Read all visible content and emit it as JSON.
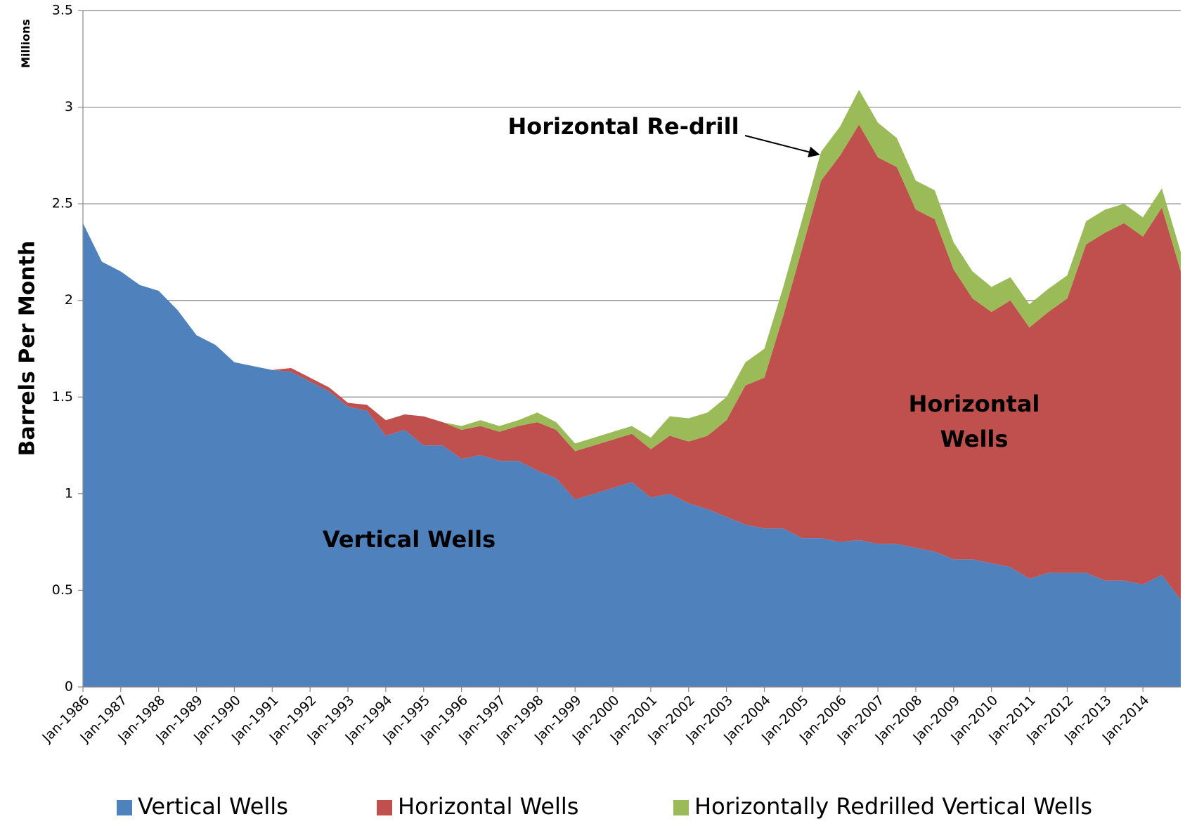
{
  "chart_data": {
    "type": "stacked_area",
    "y_unit_label": "Millions",
    "ylabel": "Barrels Per Month",
    "ylim": [
      0,
      3.5
    ],
    "yticks": [
      0,
      0.5,
      1,
      1.5,
      2,
      2.5,
      3,
      3.5
    ],
    "grid": true,
    "legend": "bottom",
    "annotations": [
      {
        "text": "Vertical Wells"
      },
      {
        "text": "Horizontal"
      },
      {
        "text": "Wells"
      },
      {
        "text": "Horizontal Re-drill"
      }
    ],
    "x": [
      "Jan-1986",
      "Jul-1986",
      "Jan-1987",
      "Jul-1987",
      "Jan-1988",
      "Jul-1988",
      "Jan-1989",
      "Jul-1989",
      "Jan-1990",
      "Jul-1990",
      "Jan-1991",
      "Jul-1991",
      "Jan-1992",
      "Jul-1992",
      "Jan-1993",
      "Jul-1993",
      "Jan-1994",
      "Jul-1994",
      "Jan-1995",
      "Jul-1995",
      "Jan-1996",
      "Jul-1996",
      "Jan-1997",
      "Jul-1997",
      "Jan-1998",
      "Jul-1998",
      "Jan-1999",
      "Jul-1999",
      "Jan-2000",
      "Jul-2000",
      "Jan-2001",
      "Jul-2001",
      "Jan-2002",
      "Jul-2002",
      "Jan-2003",
      "Jul-2003",
      "Jan-2004",
      "Jul-2004",
      "Jan-2005",
      "Jul-2005",
      "Jan-2006",
      "Jul-2006",
      "Jan-2007",
      "Jul-2007",
      "Jan-2008",
      "Jul-2008",
      "Jan-2009",
      "Jul-2009",
      "Jan-2010",
      "Jul-2010",
      "Jan-2011",
      "Jul-2011",
      "Jan-2012",
      "Jul-2012",
      "Jan-2013",
      "Jul-2013",
      "Jan-2014",
      "Jul-2014",
      null
    ],
    "series": [
      {
        "name": "Vertical Wells",
        "color": "#4f81bd",
        "values": [
          2.4,
          2.2,
          2.15,
          2.08,
          2.05,
          1.95,
          1.82,
          1.77,
          1.68,
          1.66,
          1.64,
          1.63,
          1.58,
          1.53,
          1.45,
          1.43,
          1.3,
          1.33,
          1.25,
          1.25,
          1.18,
          1.2,
          1.17,
          1.17,
          1.12,
          1.08,
          0.97,
          1.0,
          1.03,
          1.06,
          0.98,
          1.0,
          0.95,
          0.92,
          0.88,
          0.84,
          0.82,
          0.82,
          0.77,
          0.77,
          0.75,
          0.76,
          0.74,
          0.74,
          0.72,
          0.7,
          0.66,
          0.66,
          0.64,
          0.62,
          0.56,
          0.59,
          0.59,
          0.59,
          0.55,
          0.55,
          0.53,
          0.58,
          0.45
        ]
      },
      {
        "name": "Horizontal Wells",
        "color": "#c0504d",
        "values": [
          0,
          0,
          0,
          0,
          0,
          0,
          0,
          0,
          0,
          0,
          0,
          0.02,
          0.02,
          0.02,
          0.02,
          0.03,
          0.08,
          0.08,
          0.15,
          0.12,
          0.15,
          0.15,
          0.15,
          0.18,
          0.25,
          0.25,
          0.25,
          0.25,
          0.25,
          0.25,
          0.25,
          0.3,
          0.32,
          0.38,
          0.5,
          0.72,
          0.78,
          1.1,
          1.5,
          1.85,
          2.0,
          2.15,
          2.0,
          1.95,
          1.75,
          1.72,
          1.5,
          1.35,
          1.3,
          1.38,
          1.3,
          1.35,
          1.42,
          1.7,
          1.8,
          1.85,
          1.8,
          1.9,
          1.7
        ]
      },
      {
        "name": "Horizontally Redrilled Vertical Wells",
        "color": "#9bbb59",
        "values": [
          0,
          0,
          0,
          0,
          0,
          0,
          0,
          0,
          0,
          0,
          0,
          0,
          0,
          0,
          0,
          0,
          0,
          0,
          0,
          0,
          0.02,
          0.03,
          0.03,
          0.03,
          0.05,
          0.04,
          0.04,
          0.04,
          0.04,
          0.04,
          0.06,
          0.1,
          0.12,
          0.12,
          0.12,
          0.12,
          0.15,
          0.15,
          0.15,
          0.15,
          0.15,
          0.18,
          0.18,
          0.15,
          0.15,
          0.15,
          0.14,
          0.14,
          0.13,
          0.12,
          0.12,
          0.12,
          0.12,
          0.12,
          0.12,
          0.1,
          0.1,
          0.1,
          0.1
        ]
      }
    ]
  }
}
